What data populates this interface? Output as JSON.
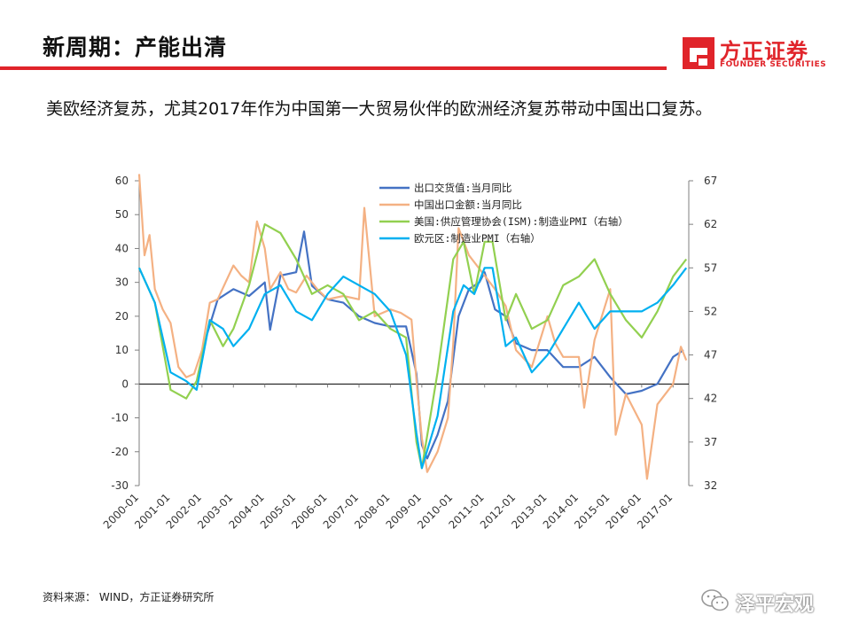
{
  "header": {
    "title": "新周期：产能出清",
    "logo_cn": "方正证券",
    "logo_en": "FOUNDER SECURITIES"
  },
  "subtitle": "美欧经济复苏，尤其2017年作为中国第一大贸易伙伴的欧洲经济复苏带动中国出口复苏。",
  "footer": {
    "source": "资料来源： WIND，方正证券研究所",
    "watermark": "泽平宏观"
  },
  "colors": {
    "accent": "#e0242a"
  },
  "chart_data": {
    "type": "line",
    "title": "",
    "xlabel": "",
    "ylabel": "",
    "x_ticks": [
      "2000-01",
      "2001-01",
      "2002-01",
      "2003-01",
      "2004-01",
      "2005-01",
      "2006-01",
      "2007-01",
      "2008-01",
      "2009-01",
      "2010-01",
      "2011-01",
      "2012-01",
      "2013-01",
      "2014-01",
      "2015-01",
      "2016-01",
      "2017-01"
    ],
    "ylim_left": [
      -30,
      60
    ],
    "yticks_left": [
      60,
      50,
      40,
      30,
      20,
      10,
      0,
      -10,
      -20,
      -30
    ],
    "ylim_right": [
      32,
      67
    ],
    "yticks_right": [
      67,
      62,
      57,
      52,
      47,
      42,
      37,
      32
    ],
    "grid": false,
    "legend_position": "top-center",
    "series": [
      {
        "name": "出口交货值:当月同比",
        "axis": "left",
        "color": "#4472c4",
        "x": [
          2002.17,
          2002.5,
          2003.0,
          2003.5,
          2004.0,
          2004.17,
          2004.5,
          2005.0,
          2005.25,
          2005.5,
          2006.0,
          2006.5,
          2007.0,
          2007.5,
          2008.0,
          2008.5,
          2008.83,
          2009.0,
          2009.17,
          2009.5,
          2009.83,
          2010.17,
          2010.5,
          2010.83,
          2011.0,
          2011.33,
          2011.67,
          2012.0,
          2012.5,
          2013.0,
          2013.5,
          2014.0,
          2014.5,
          2015.0,
          2015.5,
          2016.0,
          2016.5,
          2017.0,
          2017.33
        ],
        "values": [
          15,
          25,
          28,
          26,
          30,
          16,
          32,
          33,
          45,
          29,
          25,
          24,
          20,
          18,
          17,
          17,
          3,
          -18,
          -22,
          -15,
          -5,
          20,
          28,
          30,
          33,
          22,
          20,
          12,
          10,
          10,
          5,
          5,
          8,
          2,
          -3,
          -2,
          0,
          8,
          10
        ]
      },
      {
        "name": "中国出口金额:当月同比",
        "axis": "left",
        "color": "#f4b183",
        "x": [
          2000.0,
          2000.17,
          2000.33,
          2000.5,
          2000.75,
          2001.0,
          2001.25,
          2001.5,
          2001.75,
          2002.0,
          2002.25,
          2002.5,
          2002.75,
          2003.0,
          2003.25,
          2003.5,
          2003.75,
          2004.0,
          2004.17,
          2004.5,
          2004.75,
          2005.0,
          2005.33,
          2005.67,
          2006.0,
          2006.5,
          2007.0,
          2007.17,
          2007.5,
          2008.0,
          2008.33,
          2008.67,
          2008.83,
          2009.0,
          2009.17,
          2009.5,
          2009.83,
          2010.0,
          2010.17,
          2010.5,
          2011.0,
          2011.33,
          2011.67,
          2012.0,
          2012.5,
          2013.0,
          2013.25,
          2013.5,
          2014.0,
          2014.17,
          2014.5,
          2015.0,
          2015.17,
          2015.5,
          2016.0,
          2016.17,
          2016.5,
          2017.0,
          2017.25,
          2017.42
        ],
        "values": [
          62,
          38,
          44,
          28,
          22,
          18,
          5,
          2,
          3,
          10,
          24,
          25,
          30,
          35,
          32,
          30,
          48,
          40,
          28,
          33,
          28,
          27,
          32,
          28,
          25,
          26,
          25,
          52,
          20,
          22,
          21,
          19,
          1,
          -16,
          -26,
          -20,
          -10,
          12,
          46,
          38,
          32,
          28,
          23,
          10,
          5,
          20,
          12,
          8,
          8,
          -7,
          13,
          28,
          -15,
          -3,
          -12,
          -28,
          -6,
          0,
          11,
          7
        ]
      },
      {
        "name": "美国:供应管理协会(ISM):制造业PMI（右轴）",
        "axis": "right",
        "color": "#92d050",
        "x": [
          2000.0,
          2000.5,
          2001.0,
          2001.5,
          2001.83,
          2002.25,
          2002.67,
          2003.0,
          2003.5,
          2004.0,
          2004.5,
          2005.0,
          2005.5,
          2006.0,
          2006.5,
          2007.0,
          2007.5,
          2008.0,
          2008.5,
          2008.83,
          2009.0,
          2009.5,
          2010.0,
          2010.33,
          2010.67,
          2011.0,
          2011.25,
          2011.67,
          2012.0,
          2012.5,
          2013.0,
          2013.5,
          2014.0,
          2014.5,
          2015.0,
          2015.5,
          2016.0,
          2016.5,
          2017.0,
          2017.42
        ],
        "values": [
          57,
          53,
          43,
          42,
          44,
          51,
          48,
          50,
          55,
          62,
          61,
          58,
          54,
          55,
          54,
          51,
          52,
          50,
          49,
          37,
          34,
          45,
          58,
          60,
          54,
          60,
          60,
          51,
          54,
          50,
          51,
          55,
          56,
          58,
          54,
          51,
          49,
          52,
          56,
          58
        ]
      },
      {
        "name": "欧元区:制造业PMI（右轴）",
        "axis": "right",
        "color": "#00b0f0",
        "x": [
          2000.0,
          2000.5,
          2001.0,
          2001.5,
          2001.83,
          2002.25,
          2002.67,
          2003.0,
          2003.5,
          2004.0,
          2004.5,
          2005.0,
          2005.5,
          2006.0,
          2006.5,
          2007.0,
          2007.5,
          2008.0,
          2008.5,
          2008.83,
          2009.0,
          2009.5,
          2010.0,
          2010.33,
          2010.67,
          2011.0,
          2011.25,
          2011.67,
          2012.0,
          2012.5,
          2013.0,
          2013.5,
          2014.0,
          2014.5,
          2015.0,
          2015.5,
          2016.0,
          2016.5,
          2017.0,
          2017.42
        ],
        "values": [
          57,
          53,
          45,
          44,
          43,
          51,
          50,
          48,
          50,
          54,
          55,
          52,
          51,
          54,
          56,
          55,
          54,
          52,
          47,
          38,
          34,
          40,
          52,
          55,
          54,
          57,
          57,
          48,
          49,
          45,
          47,
          50,
          53,
          50,
          52,
          52,
          52,
          53,
          55,
          57
        ]
      }
    ]
  }
}
